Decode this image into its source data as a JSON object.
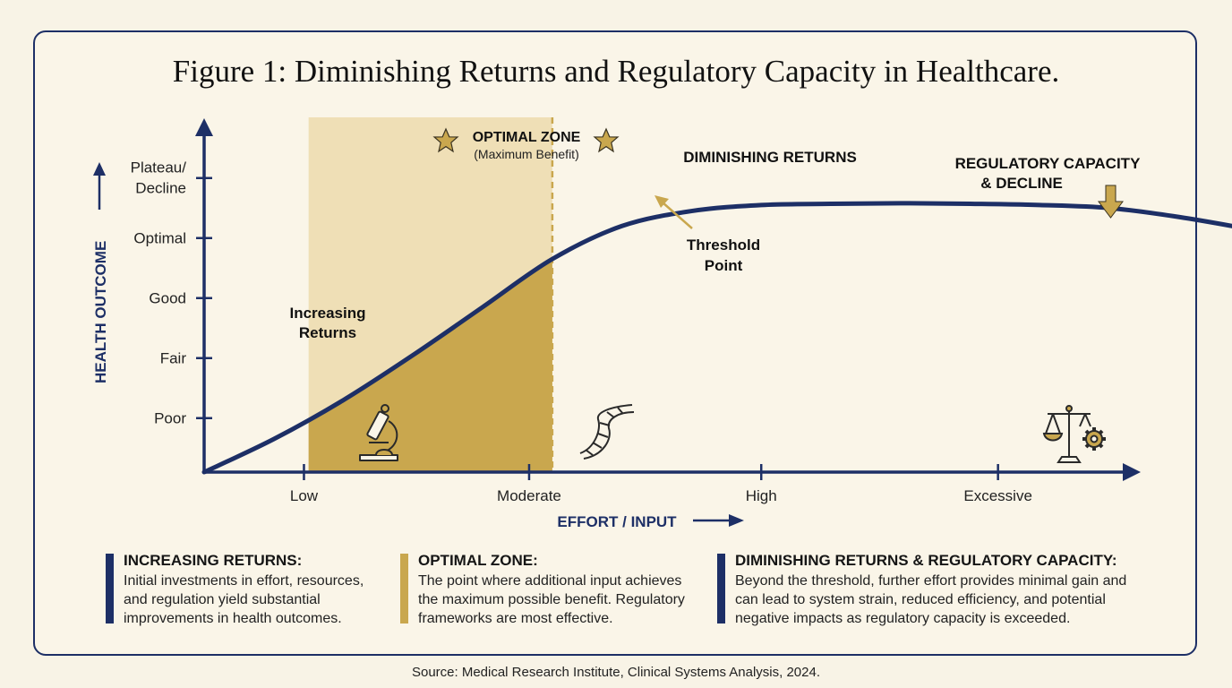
{
  "title": "Figure 1: Diminishing Returns and Regulatory Capacity in Healthcare.",
  "source": "Source: Medical Research Institute, Clinical Systems Analysis, 2024.",
  "colors": {
    "navy": "#1d2f66",
    "gold": "#c9a74e",
    "gold_light": "#efdfb6"
  },
  "chart_data": {
    "type": "line",
    "xlabel": "EFFORT / INPUT",
    "ylabel": "HEALTH OUTCOME",
    "x_ticks": [
      "Low",
      "Moderate",
      "High",
      "Excessive"
    ],
    "y_ticks": [
      "Poor",
      "Fair",
      "Good",
      "Optimal",
      "Plateau/ Decline"
    ],
    "series": [
      {
        "x": [
          0.0,
          0.3,
          0.6,
          0.9,
          1.2,
          1.5,
          1.8,
          2.1,
          2.4,
          2.7,
          3.0,
          3.3,
          3.6,
          3.9,
          4.2,
          4.5,
          4.7
        ],
        "y": [
          0.0,
          0.55,
          1.2,
          1.95,
          2.75,
          3.55,
          4.1,
          4.35,
          4.45,
          4.47,
          4.48,
          4.47,
          4.45,
          4.4,
          4.25,
          4.05,
          3.9
        ]
      }
    ],
    "optimal_zone": {
      "label": "OPTIMAL ZONE",
      "sublabel": "(Maximum Benefit)",
      "x_start": 0.45,
      "x_end": 1.5
    },
    "annotations": {
      "increasing": "Increasing Returns",
      "diminishing": "DIMINISHING RETURNS",
      "threshold": "Threshold Point",
      "regulatory": "REGULATORY CAPACITY & DECLINE"
    },
    "icons": [
      "microscope-icon",
      "dna-icon",
      "scales-gear-icon",
      "star-icon"
    ]
  },
  "legend": [
    {
      "heading": "INCREASING RETURNS:",
      "lines": [
        "Initial investments in effort, resources,",
        "and regulation yield substantial",
        "improvements in health outcomes."
      ]
    },
    {
      "heading": "OPTIMAL ZONE:",
      "lines": [
        "The point where additional input achieves",
        "the maximum possible benefit. Regulatory",
        "frameworks are most effective."
      ]
    },
    {
      "heading": "DIMINISHING RETURNS & REGULATORY CAPACITY:",
      "lines": [
        "Beyond the threshold, further effort provides minimal gain and",
        "can lead to system strain, reduced efficiency, and potential",
        "negative impacts as regulatory capacity is exceeded."
      ]
    }
  ]
}
